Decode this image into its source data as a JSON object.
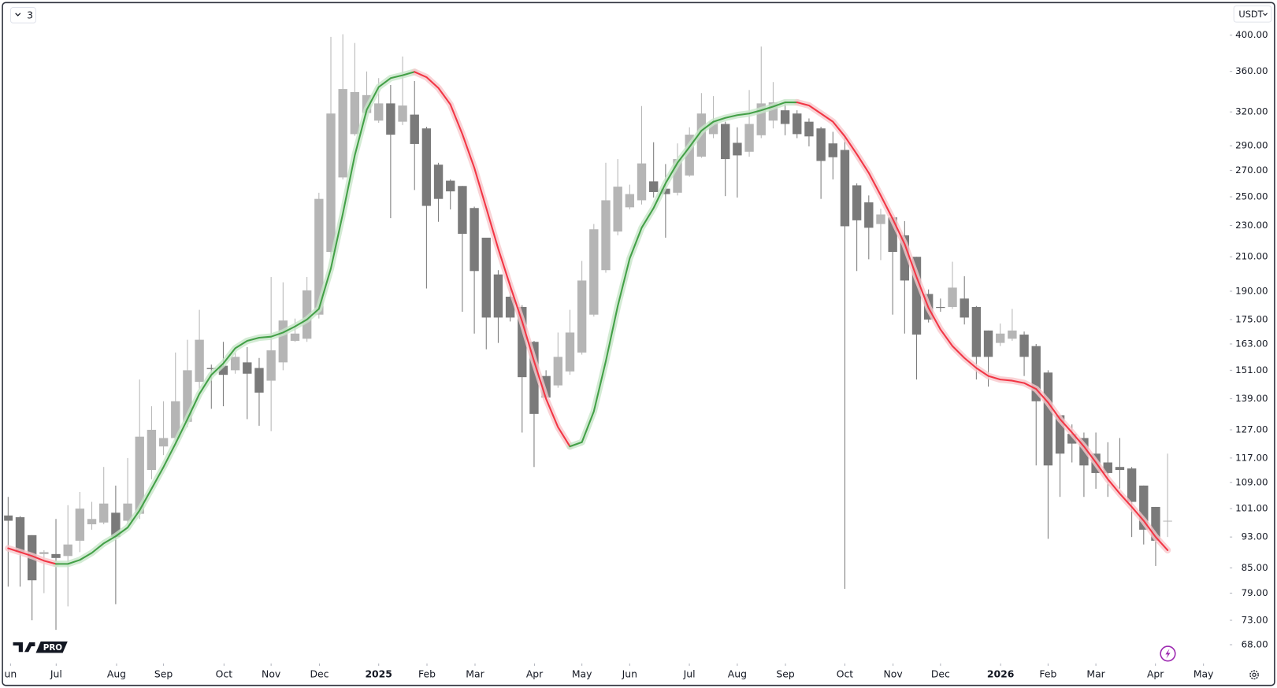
{
  "ui": {
    "interval_button": "3",
    "currency": "USDT",
    "logo_badge": "PRO"
  },
  "chart_data": {
    "type": "candlestick",
    "ylog": true,
    "ylim": [
      64.4,
      437.6
    ],
    "yticks": [
      {
        "value": 400,
        "label": "400.00"
      },
      {
        "value": 360,
        "label": "360.00"
      },
      {
        "value": 320,
        "label": "320.00"
      },
      {
        "value": 290,
        "label": "290.00"
      },
      {
        "value": 270,
        "label": "270.00"
      },
      {
        "value": 250,
        "label": "250.00"
      },
      {
        "value": 230,
        "label": "230.00"
      },
      {
        "value": 210,
        "label": "210.00"
      },
      {
        "value": 190,
        "label": "190.00"
      },
      {
        "value": 175,
        "label": "175.00"
      },
      {
        "value": 163,
        "label": "163.00"
      },
      {
        "value": 151,
        "label": "151.00"
      },
      {
        "value": 139,
        "label": "139.00"
      },
      {
        "value": 127,
        "label": "127.00"
      },
      {
        "value": 117,
        "label": "117.00"
      },
      {
        "value": 109,
        "label": "109.00"
      },
      {
        "value": 101,
        "label": "101.00"
      },
      {
        "value": 93,
        "label": "93.00"
      },
      {
        "value": 85,
        "label": "85.00"
      },
      {
        "value": 79,
        "label": "79.00"
      },
      {
        "value": 73,
        "label": "73.00"
      },
      {
        "value": 68,
        "label": "68.00"
      }
    ],
    "xlim": [
      -0.34,
      102.2
    ],
    "xticks": [
      {
        "value": 0.2,
        "label": "un"
      },
      {
        "value": 4.02,
        "label": "Jul"
      },
      {
        "value": 9.07,
        "label": "Aug"
      },
      {
        "value": 13.0,
        "label": "Sep"
      },
      {
        "value": 18.06,
        "label": "Oct"
      },
      {
        "value": 22.0,
        "label": "Nov"
      },
      {
        "value": 26.04,
        "label": "Dec"
      },
      {
        "value": 31.0,
        "label": "2025"
      },
      {
        "value": 35.04,
        "label": "Feb"
      },
      {
        "value": 39.06,
        "label": "Mar"
      },
      {
        "value": 44.04,
        "label": "Apr"
      },
      {
        "value": 48.0,
        "label": "May"
      },
      {
        "value": 52.0,
        "label": "Jun"
      },
      {
        "value": 56.99,
        "label": "Jul"
      },
      {
        "value": 61.0,
        "label": "Aug"
      },
      {
        "value": 65.03,
        "label": "Sep"
      },
      {
        "value": 70.0,
        "label": "Oct"
      },
      {
        "value": 74.03,
        "label": "Nov"
      },
      {
        "value": 78.0,
        "label": "Dec"
      },
      {
        "value": 83.03,
        "label": "2026"
      },
      {
        "value": 87.0,
        "label": "Feb"
      },
      {
        "value": 91.0,
        "label": "Mar"
      },
      {
        "value": 95.98,
        "label": "Apr"
      },
      {
        "value": 100.0,
        "label": "May"
      }
    ],
    "up_color": "#b5b5b5",
    "down_color": "#7a7a7a",
    "open": [
      99,
      98.5,
      93.5,
      88.5,
      88.5,
      88,
      92,
      96.5,
      97,
      99.8,
      97.5,
      99.5,
      113,
      121,
      124,
      130,
      146,
      152,
      153,
      151,
      154.5,
      152,
      146.5,
      154.5,
      164.5,
      165.5,
      177.5,
      213,
      264.5,
      300,
      319,
      312,
      328,
      311,
      317.5,
      305,
      274.5,
      262,
      258,
      242,
      222,
      199.5,
      187,
      181.5,
      164,
      148.5,
      144.5,
      150.5,
      159,
      177.5,
      202,
      226,
      242.5,
      247.5,
      261.5,
      256,
      253,
      266,
      281,
      300,
      309,
      292.5,
      285,
      299,
      312,
      321.5,
      318.5,
      311,
      305,
      292,
      286.5,
      258.5,
      246,
      231,
      235.5,
      223.5,
      210,
      188.5,
      181.5,
      181.5,
      186,
      181.5,
      169.5,
      163.5,
      165.5,
      167.5,
      162,
      150,
      132.5,
      125.5,
      124,
      118.5,
      115.5,
      114,
      113.5,
      108,
      101.5,
      97.5
    ],
    "high": [
      104.5,
      98.8,
      93.5,
      89.5,
      98,
      102,
      106,
      103,
      114,
      108,
      117,
      147,
      136,
      138,
      159,
      165,
      180,
      153.5,
      164,
      159,
      161.5,
      156.5,
      198,
      195,
      175.5,
      198,
      253,
      398,
      401,
      391,
      360,
      353,
      346,
      376,
      350,
      306.5,
      276,
      263,
      258,
      243,
      222,
      202,
      195,
      182.5,
      164.5,
      151,
      168.5,
      180,
      207.5,
      231,
      276,
      279,
      259,
      325.5,
      293,
      275,
      292,
      306,
      338,
      335,
      311,
      306,
      341,
      387,
      349,
      329,
      321.5,
      314,
      306.5,
      302,
      298.5,
      260,
      251,
      241.5,
      235.5,
      233,
      210,
      191,
      186,
      207,
      198.5,
      182,
      169.5,
      173,
      180.5,
      169,
      163,
      151,
      132.5,
      129,
      126,
      126,
      122.5,
      124,
      114,
      108,
      101.5,
      118.5
    ],
    "low": [
      80.5,
      80.5,
      73,
      79,
      71,
      76,
      89,
      95,
      96.5,
      76.5,
      96.5,
      98,
      110,
      118,
      121.5,
      128,
      143,
      135,
      136,
      149.5,
      131,
      128.5,
      126.5,
      151,
      164,
      164,
      175.5,
      210,
      263,
      298.5,
      317,
      310,
      235,
      308,
      255,
      191.5,
      232.5,
      241,
      179,
      168,
      160.5,
      163.5,
      174,
      126,
      114,
      138.5,
      143.5,
      149,
      158,
      176.5,
      200.5,
      223.5,
      241,
      244.5,
      249.5,
      222,
      251,
      265,
      280,
      296.5,
      250.5,
      249.5,
      281,
      296.5,
      305,
      299,
      296.5,
      289.5,
      248.5,
      263,
      80,
      201.5,
      208.5,
      208,
      177.5,
      168,
      147,
      173.5,
      179,
      180.5,
      172.5,
      147,
      144,
      162,
      164.5,
      148.5,
      114.5,
      92.5,
      104.5,
      115.5,
      104.5,
      107,
      104.5,
      107,
      93,
      91,
      85.5,
      93
    ],
    "close": [
      97.5,
      89,
      82,
      89,
      87.5,
      91,
      101,
      98,
      102.5,
      93,
      102.5,
      124.5,
      127,
      124,
      138,
      151,
      165,
      151.5,
      149,
      157,
      149.5,
      141.5,
      160,
      174.5,
      168,
      190.5,
      248.5,
      318.5,
      342,
      339,
      336,
      328,
      299.5,
      326,
      291.5,
      243.5,
      248.5,
      254,
      224.5,
      201.5,
      176,
      176,
      176,
      148,
      133,
      139.5,
      157,
      168.5,
      196,
      227.5,
      247.5,
      257.5,
      252,
      275.5,
      253.5,
      252,
      279,
      299.5,
      318.5,
      311,
      279,
      282,
      309,
      328,
      329,
      309,
      300,
      298,
      277.5,
      280.5,
      229.5,
      233.5,
      228.5,
      237.5,
      213,
      196,
      167.5,
      175,
      181,
      192,
      176,
      157,
      157,
      168,
      169.5,
      157,
      138,
      114.5,
      118.5,
      122,
      114.5,
      112,
      112,
      113,
      103,
      95,
      92,
      97.5
    ],
    "overlay": {
      "up_color": "#43a047",
      "down_color": "#f23645",
      "up_glow": "#c8e6c9",
      "down_glow": "#f8c8cc",
      "values": [
        90,
        89,
        88,
        86.8,
        86,
        86,
        87,
        88.8,
        91.3,
        93.2,
        95.6,
        100.5,
        107,
        114,
        122,
        131,
        141,
        149,
        154,
        161,
        164.5,
        166,
        166.5,
        168.5,
        171.5,
        175,
        180.5,
        203,
        238,
        282,
        322,
        344,
        353,
        356,
        359.5,
        354,
        343,
        327,
        300,
        272,
        242,
        215,
        193,
        174,
        155,
        139,
        128,
        121,
        122.5,
        134,
        155,
        182,
        209,
        228.5,
        242,
        260,
        276,
        289,
        303,
        311,
        314.5,
        317,
        318.5,
        321.5,
        325,
        329,
        329,
        326,
        318.5,
        311,
        298,
        283,
        268,
        251,
        234.5,
        218,
        198,
        181,
        170,
        162,
        156.5,
        152,
        148.5,
        147,
        146.5,
        145.5,
        143,
        137.5,
        131,
        126,
        121,
        115.5,
        110,
        105.5,
        101.5,
        97.5,
        93,
        89.5
      ]
    }
  }
}
